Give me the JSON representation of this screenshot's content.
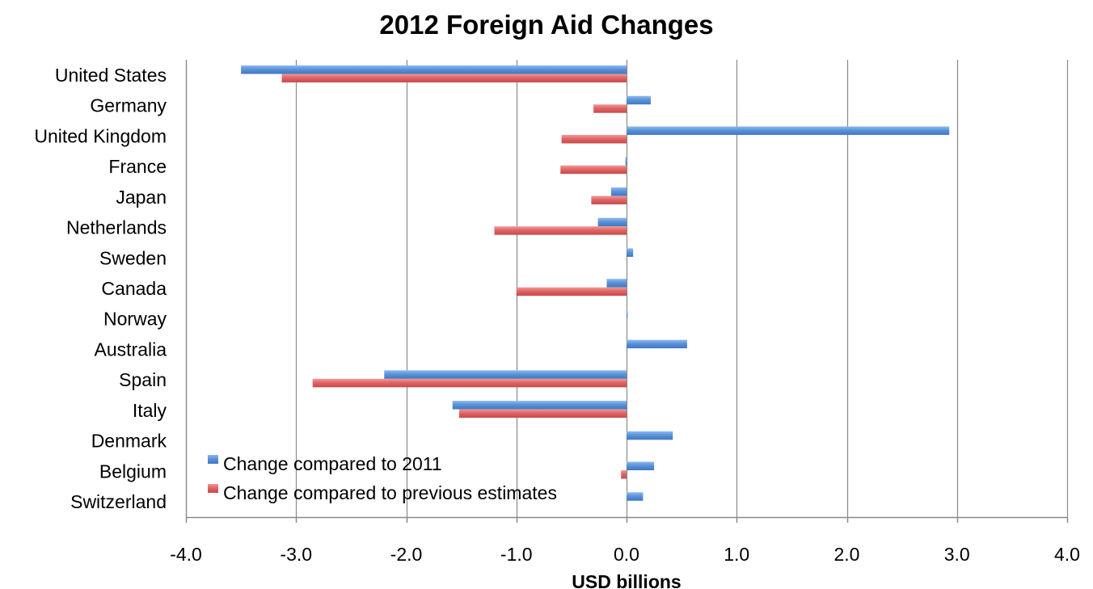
{
  "chart_data": {
    "type": "bar",
    "orientation": "horizontal",
    "title": "2012 Foreign Aid Changes",
    "xlabel": "USD billions",
    "ylabel": "",
    "xlim": [
      -4.0,
      4.0
    ],
    "xticks": [
      -4.0,
      -3.0,
      -2.0,
      -1.0,
      0.0,
      1.0,
      2.0,
      3.0,
      4.0
    ],
    "xtick_labels": [
      "-4.0",
      "-3.0",
      "-2.0",
      "-1.0",
      "0.0",
      "1.0",
      "2.0",
      "3.0",
      "4.0"
    ],
    "grid": "vertical",
    "legend_position": "bottom-left",
    "categories": [
      "United States",
      "Germany",
      "United Kingdom",
      "France",
      "Japan",
      "Netherlands",
      "Sweden",
      "Canada",
      "Norway",
      "Australia",
      "Spain",
      "Italy",
      "Denmark",
      "Belgium",
      "Switzerland"
    ],
    "series": [
      {
        "name": "Change compared to 2011",
        "color": "#5b93d9",
        "values": [
          -3.5,
          0.22,
          2.93,
          -0.01,
          -0.14,
          -0.26,
          0.06,
          -0.18,
          0.01,
          0.55,
          -2.2,
          -1.58,
          0.42,
          0.25,
          0.15
        ]
      },
      {
        "name": "Change compared to previous estimates",
        "color": "#e06565",
        "values": [
          -3.13,
          -0.3,
          -0.59,
          -0.6,
          -0.32,
          -1.2,
          0.0,
          -1.0,
          0.0,
          0.0,
          -2.85,
          -1.52,
          0.0,
          -0.05,
          0.0
        ]
      }
    ]
  }
}
